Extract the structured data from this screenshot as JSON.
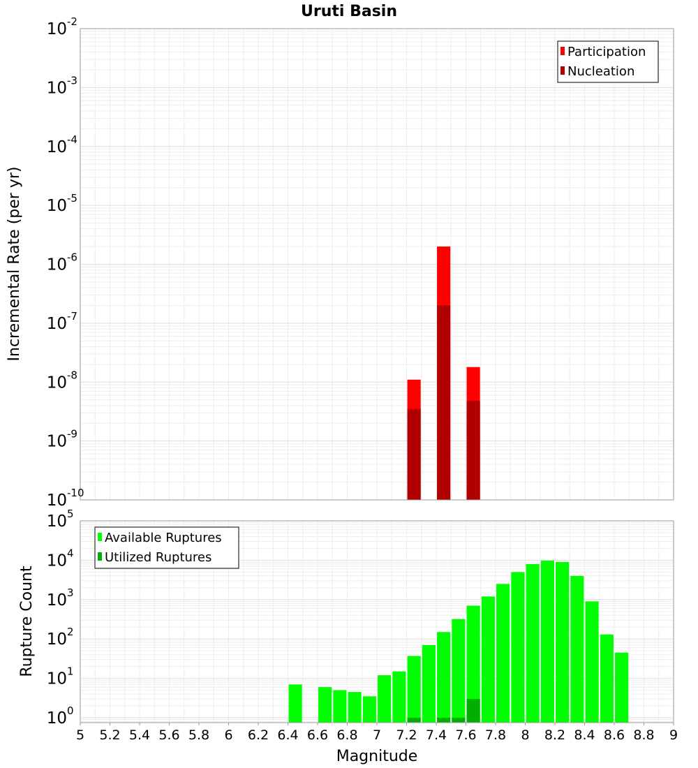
{
  "figure": {
    "title": "Uruti Basin",
    "xlabel": "Magnitude"
  },
  "chart_data": [
    {
      "type": "bar",
      "panel": "top",
      "ylabel": "Incremental Rate (per yr)",
      "yscale": "log",
      "xlim": [
        5,
        9
      ],
      "ylim": [
        1e-10,
        0.01
      ],
      "grid": true,
      "legend_position": "top-right",
      "series": [
        {
          "name": "Participation",
          "color": "#ff0000",
          "x": [
            7.25,
            7.45,
            7.65
          ],
          "values": [
            1.1e-08,
            2e-06,
            1.8e-08
          ]
        },
        {
          "name": "Nucleation",
          "color": "#b00000",
          "x": [
            7.25,
            7.45,
            7.65
          ],
          "values": [
            3.5e-09,
            2e-07,
            4.8e-09
          ]
        }
      ]
    },
    {
      "type": "bar",
      "panel": "bottom",
      "ylabel": "Rupture Count",
      "yscale": "log",
      "xlim": [
        5,
        9
      ],
      "ylim": [
        0.75,
        100000.0
      ],
      "grid": true,
      "legend_position": "top-left",
      "series": [
        {
          "name": "Available Ruptures",
          "color": "#00ff00",
          "x": [
            6.45,
            6.65,
            6.75,
            6.85,
            6.95,
            7.05,
            7.15,
            7.25,
            7.35,
            7.45,
            7.55,
            7.65,
            7.75,
            7.85,
            7.95,
            8.05,
            8.15,
            8.25,
            8.35,
            8.45,
            8.55,
            8.65
          ],
          "values": [
            7,
            6,
            5,
            4.5,
            3.5,
            12,
            15,
            37,
            70,
            150,
            320,
            700,
            1200,
            2500,
            5000,
            8000,
            9800,
            9000,
            4000,
            900,
            130,
            45
          ]
        },
        {
          "name": "Utilized Ruptures",
          "color": "#00b000",
          "x": [
            7.25,
            7.45,
            7.55,
            7.65
          ],
          "values": [
            1,
            1,
            1,
            3
          ]
        }
      ]
    }
  ],
  "top_panel": {
    "yticks": [
      {
        "value": 0.01,
        "base": "10",
        "exp": "-2"
      },
      {
        "value": 0.001,
        "base": "10",
        "exp": "-3"
      },
      {
        "value": 0.0001,
        "base": "10",
        "exp": "-4"
      },
      {
        "value": 1e-05,
        "base": "10",
        "exp": "-5"
      },
      {
        "value": 1e-06,
        "base": "10",
        "exp": "-6"
      },
      {
        "value": 1e-07,
        "base": "10",
        "exp": "-7"
      },
      {
        "value": 1e-08,
        "base": "10",
        "exp": "-8"
      },
      {
        "value": 1e-09,
        "base": "10",
        "exp": "-9"
      },
      {
        "value": 1e-10,
        "base": "10",
        "exp": "-10"
      }
    ]
  },
  "bottom_panel": {
    "yticks": [
      {
        "value": 100000.0,
        "base": "10",
        "exp": "5"
      },
      {
        "value": 10000.0,
        "base": "10",
        "exp": "4"
      },
      {
        "value": 1000.0,
        "base": "10",
        "exp": "3"
      },
      {
        "value": 100.0,
        "base": "10",
        "exp": "2"
      },
      {
        "value": 10.0,
        "base": "10",
        "exp": "1"
      },
      {
        "value": 1.0,
        "base": "10",
        "exp": "0"
      }
    ]
  },
  "xticks": [
    "5",
    "5.2",
    "5.4",
    "5.6",
    "5.8",
    "6",
    "6.2",
    "6.4",
    "6.6",
    "6.8",
    "7",
    "7.2",
    "7.4",
    "7.6",
    "7.8",
    "8",
    "8.2",
    "8.4",
    "8.6",
    "8.8",
    "9"
  ]
}
